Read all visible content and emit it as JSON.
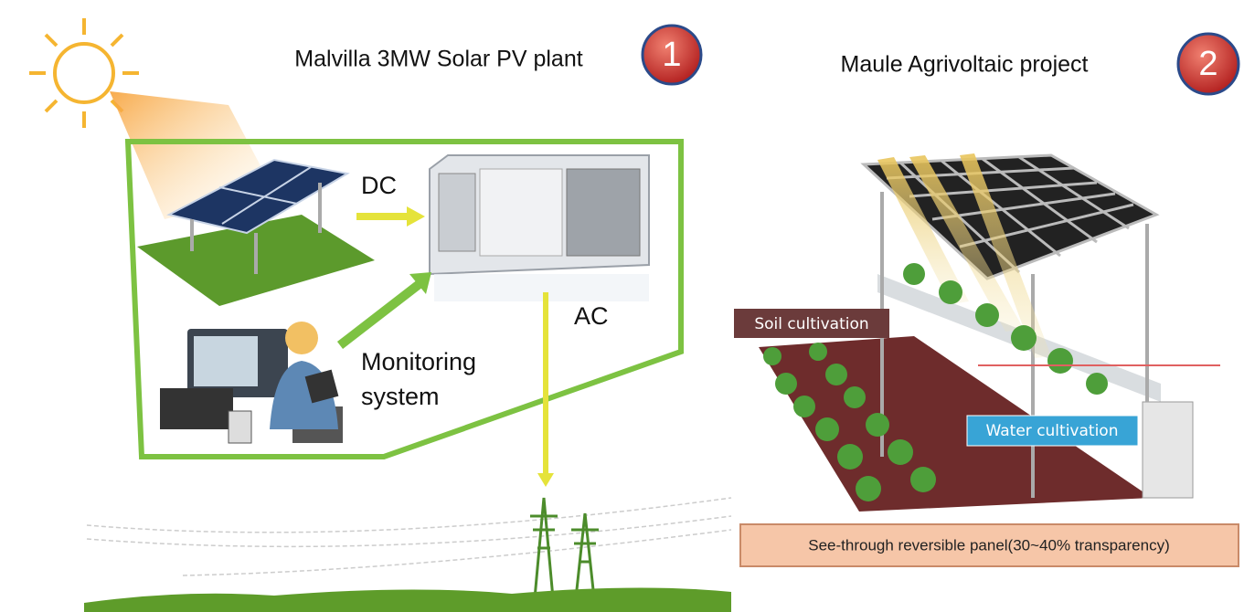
{
  "left": {
    "title": "Malvilla 3MW Solar PV plant",
    "badge": "1",
    "labels": {
      "dc": "DC",
      "ac": "AC",
      "monitoring": [
        "Monitoring",
        "system"
      ]
    }
  },
  "right": {
    "title": "Maule Agrivoltaic project",
    "badge": "2",
    "labels": {
      "soil": "Soil cultivation",
      "water": "Water cultivation",
      "panel": "See-through reversible panel(30~40% transparency)"
    }
  }
}
